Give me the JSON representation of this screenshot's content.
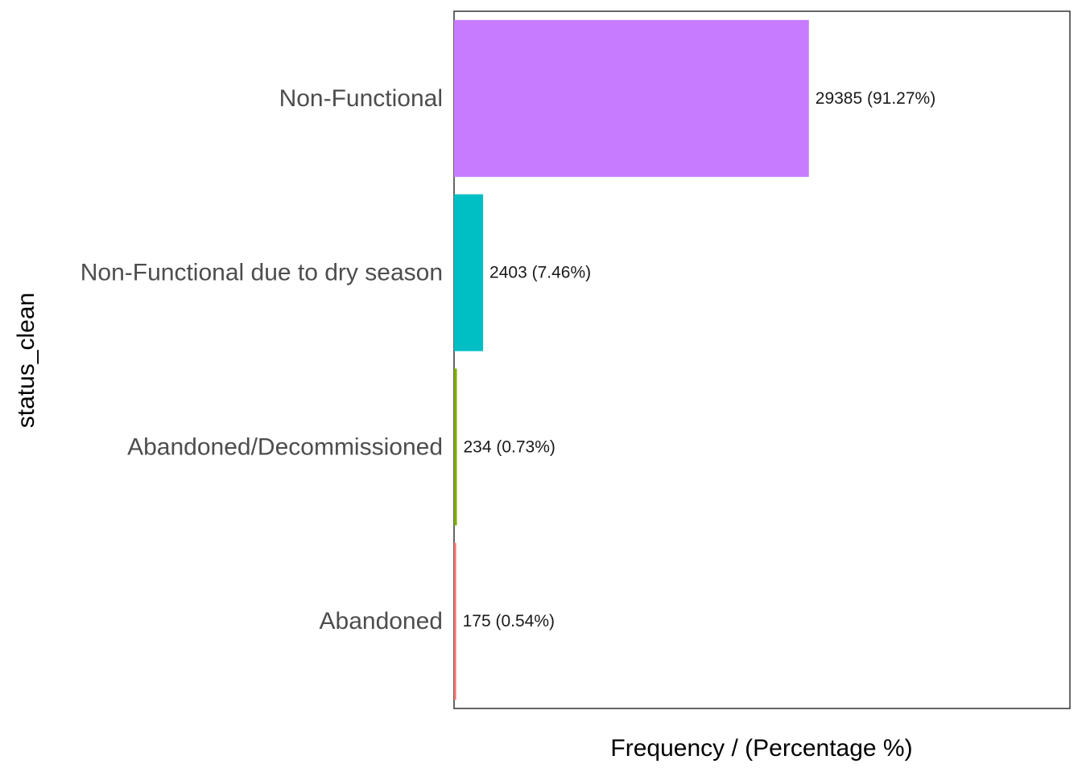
{
  "chart_data": {
    "type": "bar",
    "orientation": "horizontal",
    "categories": [
      "Abandoned",
      "Abandoned/Decommissioned",
      "Non-Functional due to dry season",
      "Non-Functional"
    ],
    "values": [
      175,
      234,
      2403,
      29385
    ],
    "data_labels": [
      "175 (0.54%)",
      "234 (0.73%)",
      "2403 (7.46%)",
      "29385 (91.27%)"
    ],
    "colors": [
      "#F8766D",
      "#7CAE00",
      "#00BFC4",
      "#C77CFF"
    ],
    "xlabel": "Frequency / (Percentage %)",
    "ylabel": "status_clean",
    "xlim": [
      0,
      51000
    ],
    "grid": false,
    "legend": "none"
  }
}
